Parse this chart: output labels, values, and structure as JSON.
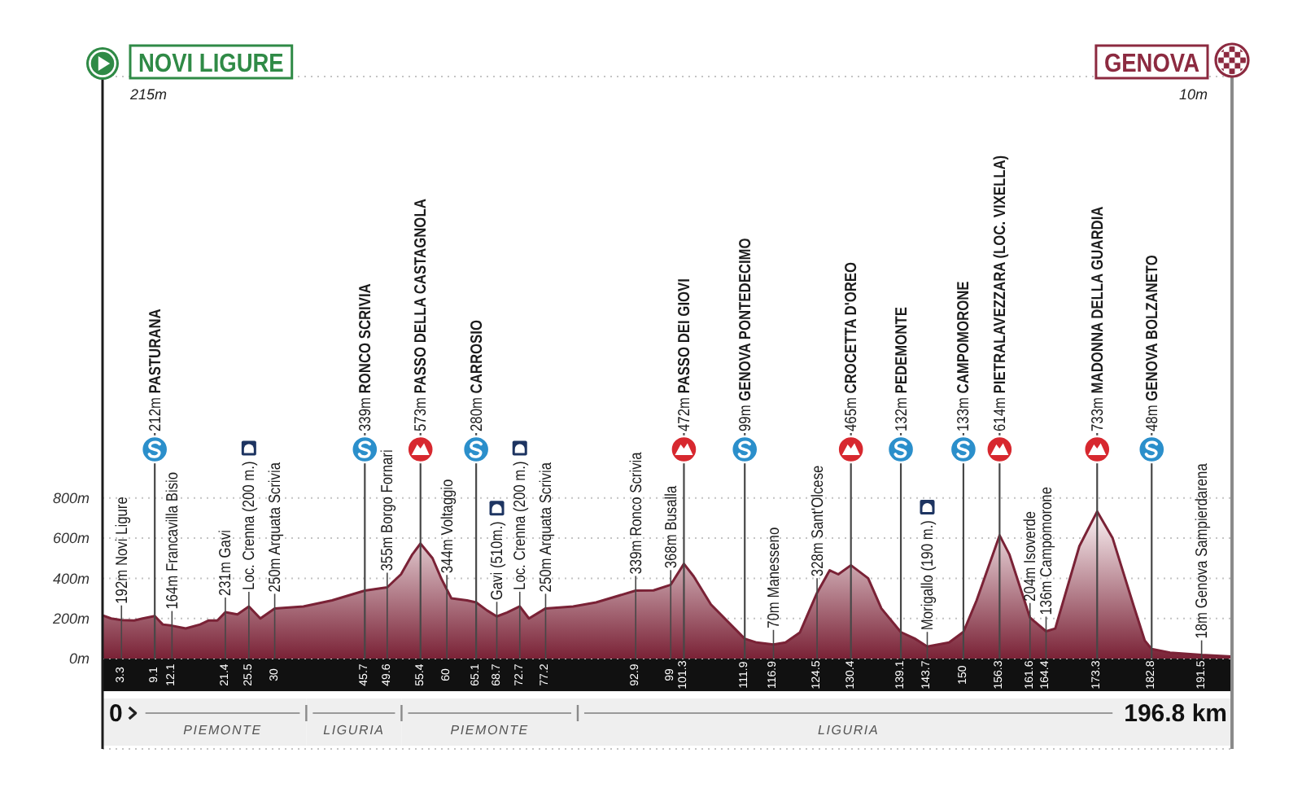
{
  "chart_data": {
    "type": "area",
    "x": [
      0,
      1.5,
      3.3,
      5.5,
      7,
      9.1,
      10.5,
      12.1,
      14.5,
      17,
      18.5,
      20,
      21.4,
      23.5,
      25.5,
      27.5,
      30,
      35,
      40,
      45.7,
      49.6,
      52,
      54,
      55.4,
      57.5,
      59,
      60,
      60.8,
      63.5,
      65.1,
      67,
      68.7,
      70.5,
      72.7,
      74.3,
      77.2,
      82,
      86,
      92.9,
      96,
      99,
      101.3,
      103,
      106,
      111.9,
      114,
      116.9,
      119,
      121.5,
      124.5,
      126.7,
      128.2,
      130.4,
      133.4,
      135.7,
      139.1,
      141.5,
      143.7,
      147.5,
      150,
      152.3,
      156.3,
      158,
      161.6,
      164.4,
      166,
      170.2,
      173.3,
      176,
      179.7,
      181.6,
      182.8,
      186,
      191.5,
      196.8
    ],
    "values": [
      215,
      200,
      192,
      190,
      200,
      212,
      170,
      164,
      150,
      170,
      190,
      190,
      231,
      220,
      260,
      200,
      250,
      260,
      290,
      339,
      355,
      420,
      520,
      573,
      500,
      400,
      344,
      300,
      290,
      280,
      240,
      210,
      230,
      260,
      200,
      250,
      260,
      280,
      339,
      340,
      368,
      472,
      410,
      270,
      99,
      80,
      70,
      80,
      130,
      328,
      440,
      420,
      465,
      400,
      250,
      132,
      100,
      60,
      80,
      133,
      290,
      614,
      520,
      204,
      136,
      150,
      560,
      733,
      600,
      260,
      90,
      48,
      30,
      18,
      10
    ],
    "color": "#7a2236",
    "xlim": [
      0,
      196.8
    ],
    "xticks": [
      3.3,
      9.1,
      12.1,
      21.4,
      25.5,
      30,
      45.7,
      49.6,
      55.4,
      60,
      65.1,
      68.7,
      72.7,
      77.2,
      92.9,
      99,
      101.3,
      111.9,
      116.9,
      124.5,
      130.4,
      139.1,
      143.7,
      150,
      156.3,
      161.6,
      164.4,
      173.3,
      182.8,
      191.5
    ],
    "ylim": [
      -450,
      2900
    ],
    "yticks": [
      {
        "value": 0,
        "label": "0m"
      },
      {
        "value": 200,
        "label": "200m"
      },
      {
        "value": 400,
        "label": "400m"
      },
      {
        "value": 600,
        "label": "600m"
      },
      {
        "value": 800,
        "label": "800m"
      }
    ],
    "grid": "y",
    "ref_lines": [
      {
        "axis": "x",
        "value": 196.8,
        "label": "GENOVA",
        "color": "#8a8a8a"
      }
    ],
    "bands": [
      {
        "axis": "x",
        "from": 0,
        "to": 35.5,
        "label": "PIEMONTE",
        "color": "#efefef"
      },
      {
        "axis": "x",
        "from": 35.5,
        "to": 52.1,
        "label": "LIGURIA",
        "color": "#efefef"
      },
      {
        "axis": "x",
        "from": 52.1,
        "to": 82.8,
        "label": "PIEMONTE",
        "color": "#efefef"
      },
      {
        "axis": "x",
        "from": 82.8,
        "to": 196.8,
        "label": "LIGURIA",
        "color": "#efefef"
      }
    ],
    "annotations": [
      {
        "text": "192m Novi Ligure",
        "x": 3.3,
        "y": 192
      },
      {
        "text": "212m PASTURANA",
        "x": 9.1,
        "y": 212
      },
      {
        "text": "164m Francavilla Bisio",
        "x": 12.1,
        "y": 164
      },
      {
        "text": "231m Gavi",
        "x": 21.4,
        "y": 231
      },
      {
        "text": "Loc. Crenna (200 m.)",
        "x": 25.5,
        "y": 260
      },
      {
        "text": "250m Arquata Scrivia",
        "x": 30,
        "y": 250
      },
      {
        "text": "339m RONCO SCRIVIA",
        "x": 45.7,
        "y": 339
      },
      {
        "text": "355m Borgo Fornari",
        "x": 49.6,
        "y": 355
      },
      {
        "text": "573m PASSO DELLA CASTAGNOLA",
        "x": 55.4,
        "y": 573
      },
      {
        "text": "344m Voltaggio",
        "x": 60,
        "y": 344
      },
      {
        "text": "280m CARROSIO",
        "x": 65.1,
        "y": 280
      },
      {
        "text": "Gavi (510m.)",
        "x": 68.7,
        "y": 210
      },
      {
        "text": "Loc. Crenna (200 m.)",
        "x": 72.7,
        "y": 260
      },
      {
        "text": "250m Arquata Scrivia",
        "x": 77.2,
        "y": 250
      },
      {
        "text": "339m Ronco Scrivia",
        "x": 92.9,
        "y": 339
      },
      {
        "text": "368m Busalla",
        "x": 99,
        "y": 368
      },
      {
        "text": "472m PASSO DEI GIOVI",
        "x": 101.3,
        "y": 472
      },
      {
        "text": "99m GENOVA PONTEDECIMO",
        "x": 111.9,
        "y": 99
      },
      {
        "text": "70m Manesseno",
        "x": 116.9,
        "y": 70
      },
      {
        "text": "328m Sant'Olcese",
        "x": 124.5,
        "y": 328
      },
      {
        "text": "465m CROCETTA D'OREO",
        "x": 130.4,
        "y": 465
      },
      {
        "text": "132m PEDEMONTE",
        "x": 139.1,
        "y": 132
      },
      {
        "text": "Morigallo (190 m.)",
        "x": 143.7,
        "y": 60
      },
      {
        "text": "133m CAMPOMORONE",
        "x": 150,
        "y": 133
      },
      {
        "text": "614m PIETRALAVEZZARA (LOC. VIXELLA)",
        "x": 156.3,
        "y": 614
      },
      {
        "text": "204m Isoverde",
        "x": 161.6,
        "y": 204
      },
      {
        "text": "136m Campomorone",
        "x": 164.4,
        "y": 136
      },
      {
        "text": "733m MADONNA DELLA GUARDIA",
        "x": 173.3,
        "y": 733
      },
      {
        "text": "48m GENOVA BOLZANETO",
        "x": 182.8,
        "y": 48
      },
      {
        "text": "18m Genova Sampierdarena",
        "x": 191.5,
        "y": 18
      },
      "NOVI LIGURE",
      "215m",
      "10m",
      "0",
      "196.8 km"
    ]
  }
}
